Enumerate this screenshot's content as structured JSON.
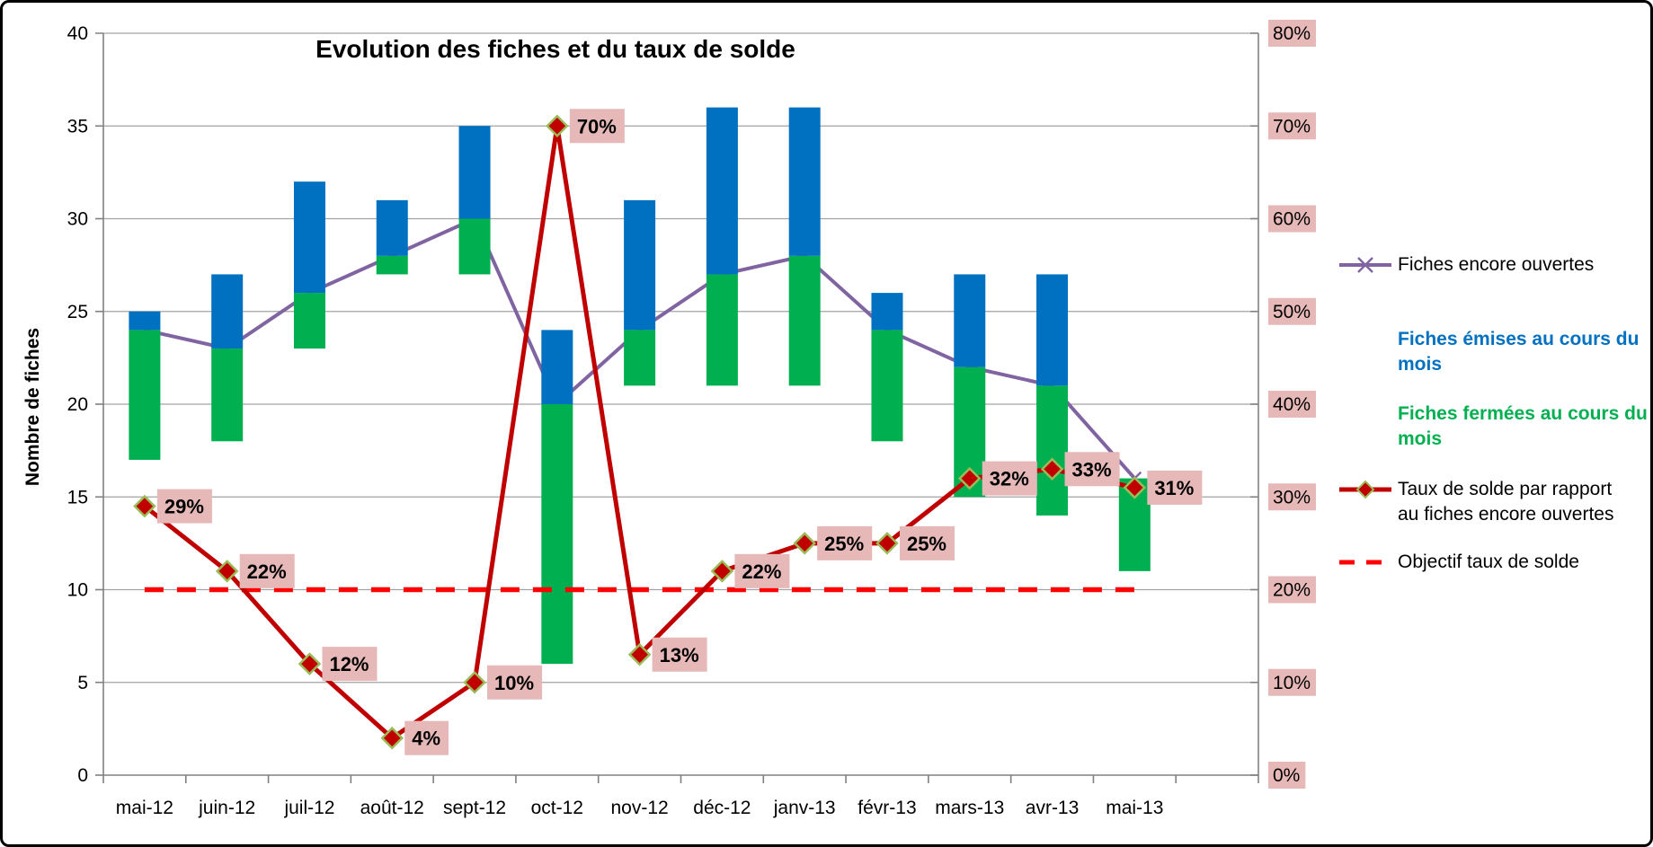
{
  "title": "Evolution des fiches et du taux de solde",
  "y_axis_left": {
    "title": "Nombre de fiches",
    "ticks": [
      0,
      5,
      10,
      15,
      20,
      25,
      30,
      35,
      40
    ],
    "min": 0,
    "max": 40
  },
  "y_axis_right": {
    "ticks": [
      "0%",
      "10%",
      "20%",
      "30%",
      "40%",
      "50%",
      "60%",
      "70%",
      "80%"
    ],
    "min": 0,
    "max": 80,
    "label_bg": "#e6b9b8"
  },
  "legend": {
    "items": [
      {
        "label": "Fiches encore ouvertes",
        "marker": "line-x",
        "color": "#8064a2",
        "text_color": "#000000"
      },
      {
        "label": "Fiches émises au cours du\nmois",
        "marker": "none",
        "color": "#0070c0",
        "text_color": "#0070c0"
      },
      {
        "label": "Fiches fermées au cours du\nmois",
        "marker": "none",
        "color": "#00b050",
        "text_color": "#00b050"
      },
      {
        "label": "Taux de solde par rapport\nau fiches encore ouvertes",
        "marker": "line-diamond",
        "color": "#c00000",
        "text_color": "#000000"
      },
      {
        "label": "Objectif taux de solde",
        "marker": "dashed-line",
        "color": "#ff0000",
        "text_color": "#000000"
      }
    ]
  },
  "chart_data": {
    "type": "combo",
    "categories": [
      "mai-12",
      "juin-12",
      "juil-12",
      "août-12",
      "sept-12",
      "oct-12",
      "nov-12",
      "déc-12",
      "janv-13",
      "févr-13",
      "mars-13",
      "avr-13",
      "mai-13"
    ],
    "series": [
      {
        "name": "Fiches fermées au cours du mois",
        "type": "range_bar",
        "color": "#00b050",
        "from": [
          17,
          18,
          23,
          27,
          27,
          6,
          21,
          21,
          21,
          18,
          15,
          14,
          11
        ],
        "to": [
          24,
          23,
          26,
          28,
          30,
          20,
          24,
          27,
          28,
          24,
          22,
          21,
          16
        ]
      },
      {
        "name": "Fiches émises au cours du mois",
        "type": "range_bar",
        "color": "#0070c0",
        "from": [
          24,
          23,
          26,
          28,
          30,
          20,
          24,
          27,
          28,
          24,
          22,
          21,
          16
        ],
        "to": [
          25,
          27,
          32,
          31,
          35,
          24,
          31,
          36,
          36,
          26,
          27,
          27,
          16
        ]
      },
      {
        "name": "Fiches encore ouvertes",
        "type": "line",
        "marker": "x",
        "color": "#8064a2",
        "axis": "left",
        "values": [
          24,
          23,
          26,
          28,
          30,
          20,
          24,
          27,
          28,
          24,
          22,
          21,
          16
        ]
      },
      {
        "name": "Taux de solde par rapport au fiches encore ouvertes",
        "type": "line",
        "marker": "diamond",
        "color": "#c00000",
        "marker_stroke": "#9bbb59",
        "axis": "right",
        "values_pct": [
          29,
          22,
          12,
          4,
          10,
          70,
          13,
          22,
          25,
          25,
          32,
          33,
          31
        ],
        "labels": [
          "29%",
          "22%",
          "12%",
          "4%",
          "10%",
          "70%",
          "13%",
          "22%",
          "25%",
          "25%",
          "32%",
          "33%",
          "31%"
        ],
        "label_bg": "#e6b9b8",
        "label_text_color": "#000000"
      },
      {
        "name": "Objectif taux de solde",
        "type": "dashed_line",
        "color": "#ff0000",
        "axis": "right",
        "value_pct": 20
      }
    ],
    "grid": true,
    "grid_color": "#a3a3a3",
    "axis_color": "#808080",
    "ylim_left": [
      0,
      40
    ],
    "ylim_right": [
      0,
      80
    ]
  }
}
